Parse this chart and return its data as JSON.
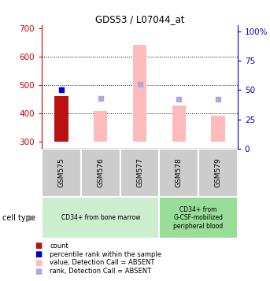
{
  "title": "GDS53 / L07044_at",
  "samples": [
    "GSM575",
    "GSM576",
    "GSM577",
    "GSM578",
    "GSM579"
  ],
  "ylim_left": [
    275,
    710
  ],
  "ylim_right": [
    0,
    105
  ],
  "yticks_left": [
    300,
    400,
    500,
    600,
    700
  ],
  "yticks_right": [
    0,
    25,
    50,
    75,
    100
  ],
  "bar_base": 300,
  "count_values": [
    460,
    null,
    null,
    null,
    null
  ],
  "count_color": "#bb1111",
  "value_absent": [
    null,
    408,
    641,
    428,
    393
  ],
  "value_absent_color": "#ffbbbb",
  "percentile_rank": [
    50,
    null,
    null,
    null,
    null
  ],
  "percentile_rank_color": "#0000cc",
  "rank_absent": [
    null,
    43,
    55,
    42,
    42
  ],
  "rank_absent_color": "#aaaadd",
  "cell_type_groups": [
    {
      "label": "CD34+ from bone marrow",
      "samples": [
        0,
        1,
        2
      ],
      "color": "#cceecc"
    },
    {
      "label": "CD34+ from\nG-CSF-mobilized\nperipheral blood",
      "samples": [
        3,
        4
      ],
      "color": "#99dd99"
    }
  ],
  "cell_type_label": "cell type",
  "legend_items": [
    {
      "label": "count",
      "color": "#bb1111"
    },
    {
      "label": "percentile rank within the sample",
      "color": "#0000cc"
    },
    {
      "label": "value, Detection Call = ABSENT",
      "color": "#ffbbbb"
    },
    {
      "label": "rank, Detection Call = ABSENT",
      "color": "#aaaadd"
    }
  ],
  "left_axis_color": "#cc0000",
  "right_axis_color": "#0000cc",
  "sample_box_color": "#cccccc",
  "bar_width": 0.35
}
